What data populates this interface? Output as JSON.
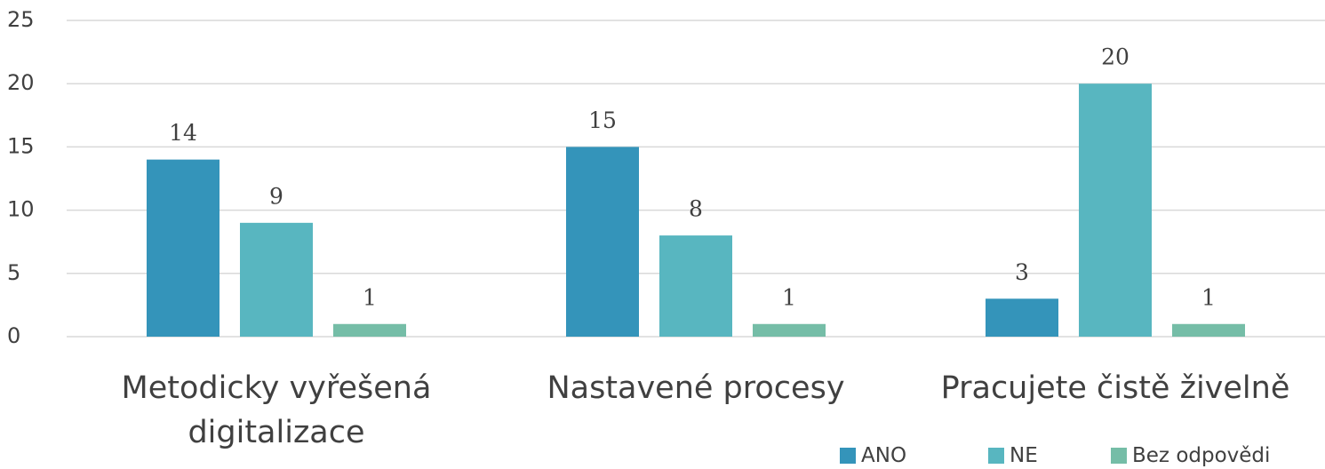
{
  "chart_data": {
    "type": "bar",
    "categories": [
      "Metodicky vyřešená digitalizace",
      "Nastavené procesy",
      "Pracujete čistě živelně"
    ],
    "series": [
      {
        "name": "ANO",
        "color": "#3494ba",
        "values": [
          14,
          15,
          3
        ]
      },
      {
        "name": "NE",
        "color": "#58b6c0",
        "values": [
          9,
          8,
          20
        ]
      },
      {
        "name": "Bez odpovědi",
        "color": "#75bda7",
        "values": [
          1,
          1,
          1
        ]
      }
    ],
    "ylim": [
      0,
      25
    ],
    "yticks": [
      0,
      5,
      10,
      15,
      20,
      25
    ],
    "grid": true,
    "legend": "bottom-right"
  }
}
